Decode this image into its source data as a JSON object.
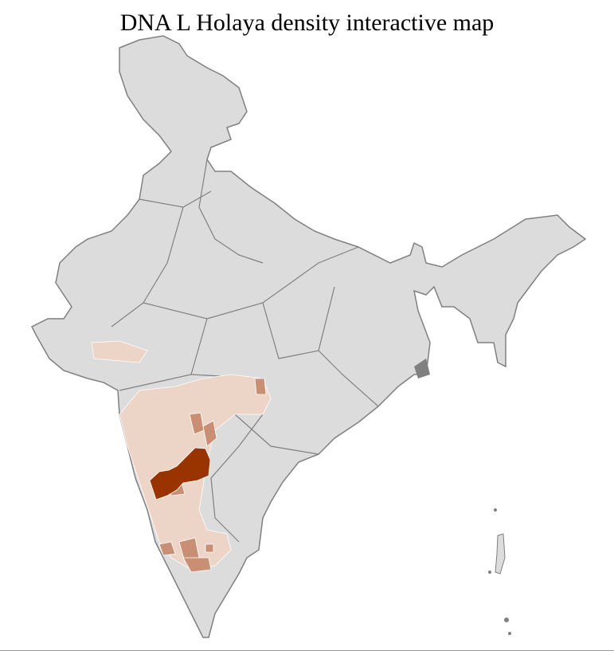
{
  "title": "DNA L Holaya density interactive map",
  "colors": {
    "no_data": "#dcdcdc",
    "low": "#ecd4c7",
    "medium": "#c98f74",
    "high": "#993300",
    "border": "#808080",
    "district_border": "#ffffff"
  }
}
